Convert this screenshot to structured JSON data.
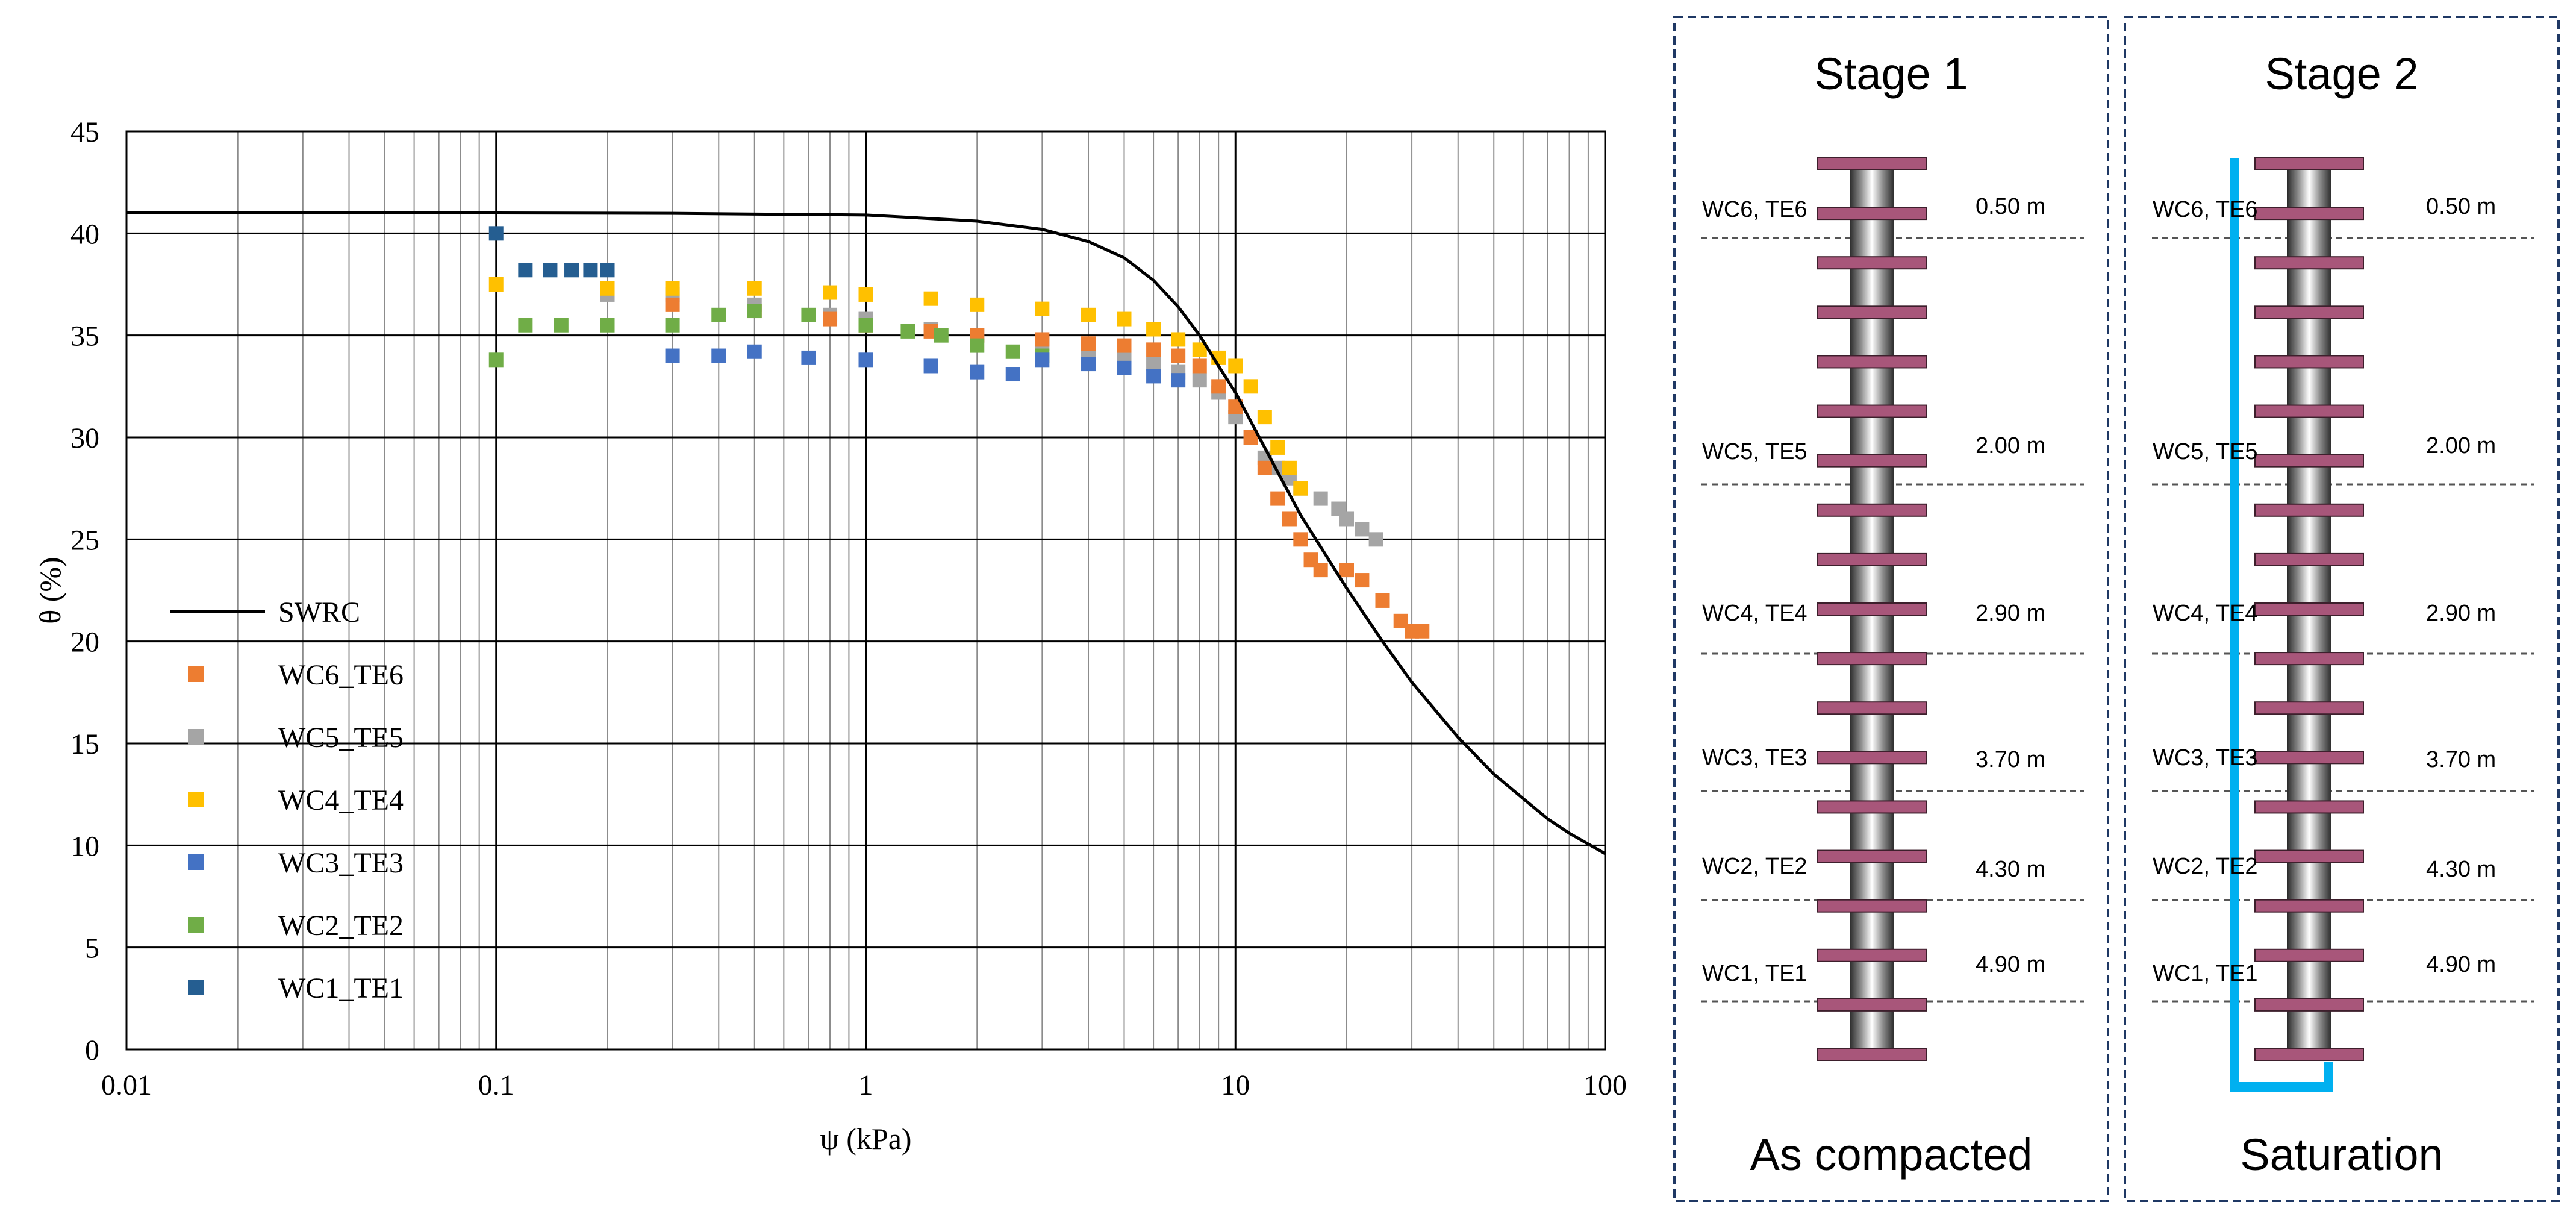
{
  "chart_data": {
    "type": "scatter",
    "title": "",
    "xlabel": "ψ (kPa)",
    "ylabel": "θ (%)",
    "xscale": "log",
    "xlim": [
      0.01,
      100
    ],
    "ylim": [
      0,
      45
    ],
    "x_ticks": [
      0.01,
      0.1,
      1,
      10,
      100
    ],
    "x_tick_labels": [
      "0.01",
      "0.1",
      "1",
      "10",
      "100"
    ],
    "y_ticks": [
      0,
      5,
      10,
      15,
      20,
      25,
      30,
      35,
      40,
      45
    ],
    "y_tick_labels": [
      "0",
      "5",
      "10",
      "15",
      "20",
      "25",
      "30",
      "35",
      "40",
      "45"
    ],
    "grid": true,
    "legend_position": "lower-left",
    "curve": {
      "name": "SWRC",
      "color": "#000000",
      "x": [
        0.01,
        0.1,
        0.3,
        1,
        2,
        3,
        4,
        5,
        6,
        7,
        8,
        9,
        10,
        12,
        15,
        20,
        25,
        30,
        40,
        50,
        60,
        70,
        80,
        100
      ],
      "y": [
        41.0,
        41.0,
        40.98,
        40.9,
        40.6,
        40.2,
        39.6,
        38.8,
        37.7,
        36.4,
        35.0,
        33.5,
        32.2,
        29.5,
        26.2,
        22.6,
        20.0,
        18.0,
        15.3,
        13.5,
        12.3,
        11.3,
        10.6,
        9.6
      ]
    },
    "series": [
      {
        "name": "WC6_TE6",
        "color": "#ED7D31",
        "x": [
          0.3,
          0.5,
          0.8,
          1,
          1.5,
          2,
          3,
          4,
          5,
          6,
          7,
          8,
          9,
          10,
          11,
          12,
          13,
          14,
          15,
          16,
          17,
          20,
          22,
          25,
          28,
          30,
          32
        ],
        "y": [
          36.5,
          36.2,
          35.8,
          35.5,
          35.2,
          35.0,
          34.8,
          34.6,
          34.5,
          34.3,
          34.0,
          33.5,
          32.5,
          31.5,
          30.0,
          28.5,
          27.0,
          26.0,
          25.0,
          24.0,
          23.5,
          23.5,
          23.0,
          22.0,
          21.0,
          20.5,
          20.5
        ]
      },
      {
        "name": "WC5_TE5",
        "color": "#A5A5A5",
        "x": [
          0.2,
          0.3,
          0.5,
          0.8,
          1,
          1.5,
          2,
          3,
          4,
          5,
          6,
          7,
          8,
          9,
          10,
          11,
          12,
          13,
          14,
          15,
          17,
          19,
          20,
          22,
          24
        ],
        "y": [
          37.0,
          37.0,
          36.5,
          36.0,
          35.8,
          35.3,
          35.0,
          34.6,
          34.3,
          34.0,
          33.6,
          33.2,
          32.8,
          32.2,
          31.0,
          30.0,
          29.0,
          28.5,
          28.0,
          27.5,
          27.0,
          26.5,
          26.0,
          25.5,
          25.0
        ]
      },
      {
        "name": "WC4_TE4",
        "color": "#FFC000",
        "x": [
          0.1,
          0.2,
          0.3,
          0.5,
          0.8,
          1,
          1.5,
          2,
          3,
          4,
          5,
          6,
          7,
          8,
          9,
          10,
          11,
          12,
          13,
          14,
          15
        ],
        "y": [
          37.5,
          37.3,
          37.3,
          37.3,
          37.1,
          37.0,
          36.8,
          36.5,
          36.3,
          36.0,
          35.8,
          35.3,
          34.8,
          34.3,
          33.9,
          33.5,
          32.5,
          31.0,
          29.5,
          28.5,
          27.5
        ]
      },
      {
        "name": "WC3_TE3",
        "color": "#4472C4",
        "x": [
          0.3,
          0.4,
          0.5,
          0.7,
          1,
          1.5,
          2,
          2.5,
          3,
          4,
          5,
          6,
          7
        ],
        "y": [
          34.0,
          34.0,
          34.2,
          33.9,
          33.8,
          33.5,
          33.2,
          33.1,
          33.8,
          33.6,
          33.4,
          33.0,
          32.8
        ]
      },
      {
        "name": "WC2_TE2",
        "color": "#70AD47",
        "x": [
          0.1,
          0.12,
          0.15,
          0.2,
          0.3,
          0.4,
          0.5,
          0.7,
          1,
          1.3,
          1.6,
          2,
          2.5,
          3
        ],
        "y": [
          33.8,
          35.5,
          35.5,
          35.5,
          35.5,
          36.0,
          36.2,
          36.0,
          35.5,
          35.2,
          35.0,
          34.5,
          34.2,
          34.0
        ]
      },
      {
        "name": "WC1_TE1",
        "color": "#255E91",
        "x": [
          0.1,
          0.12,
          0.14,
          0.16,
          0.18,
          0.2
        ],
        "y": [
          40.0,
          38.2,
          38.2,
          38.2,
          38.2,
          38.2
        ]
      }
    ]
  },
  "legend": [
    {
      "label": "SWRC",
      "kind": "line",
      "color": "#000000"
    },
    {
      "label": "WC6_TE6",
      "kind": "marker",
      "color": "#ED7D31"
    },
    {
      "label": "WC5_TE5",
      "kind": "marker",
      "color": "#A5A5A5"
    },
    {
      "label": "WC4_TE4",
      "kind": "marker",
      "color": "#FFC000"
    },
    {
      "label": "WC3_TE3",
      "kind": "marker",
      "color": "#4472C4"
    },
    {
      "label": "WC2_TE2",
      "kind": "marker",
      "color": "#70AD47"
    },
    {
      "label": "WC1_TE1",
      "kind": "marker",
      "color": "#255E91"
    }
  ],
  "panels": [
    {
      "title": "Stage 1",
      "caption": "As compacted",
      "show_water": false,
      "sensors": [
        {
          "label": "WC6, TE6",
          "depth": "0.50 m"
        },
        {
          "label": "WC5, TE5",
          "depth": "2.00 m"
        },
        {
          "label": "WC4, TE4",
          "depth": "2.90 m"
        },
        {
          "label": "WC3, TE3",
          "depth": "3.70 m"
        },
        {
          "label": "WC2, TE2",
          "depth": "4.30 m"
        },
        {
          "label": "WC1, TE1",
          "depth": "4.90 m"
        }
      ]
    },
    {
      "title": "Stage 2",
      "caption": "Saturation",
      "show_water": true,
      "sensors": [
        {
          "label": "WC6, TE6",
          "depth": "0.50 m"
        },
        {
          "label": "WC5, TE5",
          "depth": "2.00 m"
        },
        {
          "label": "WC4, TE4",
          "depth": "2.90 m"
        },
        {
          "label": "WC3, TE3",
          "depth": "3.70 m"
        },
        {
          "label": "WC2, TE2",
          "depth": "4.30 m"
        },
        {
          "label": "WC1, TE1",
          "depth": "4.90 m"
        }
      ]
    }
  ],
  "colors": {
    "panel_border": "#1F3864",
    "flange": "#A8567A",
    "water": "#00B0F0"
  }
}
